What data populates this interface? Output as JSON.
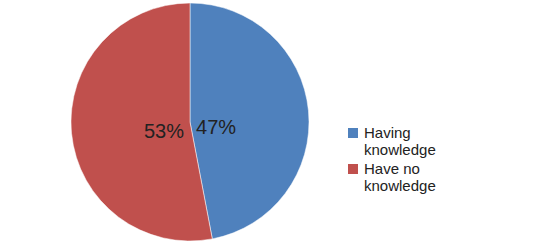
{
  "chart_data": {
    "type": "pie",
    "categories": [
      "Having knowledge",
      "Have no knowledge"
    ],
    "values": [
      47,
      53
    ],
    "value_labels": [
      "47%",
      "53%"
    ],
    "colors": [
      "#4f81bd",
      "#c0504d"
    ],
    "data_labels": true,
    "legend": "right"
  }
}
